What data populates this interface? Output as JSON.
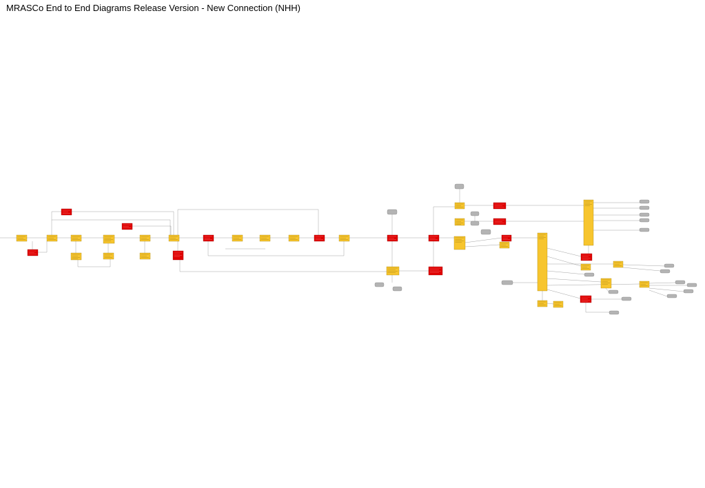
{
  "title": "MRASCo End to End Diagrams Release Version - New Connection (NHH)",
  "meta": {
    "line1": "",
    "line2": ""
  },
  "legend": {
    "yellow": "#F7C52E",
    "red": "#E00000",
    "grey": "#B4B4B4",
    "line": "#7A7A7A"
  }
}
